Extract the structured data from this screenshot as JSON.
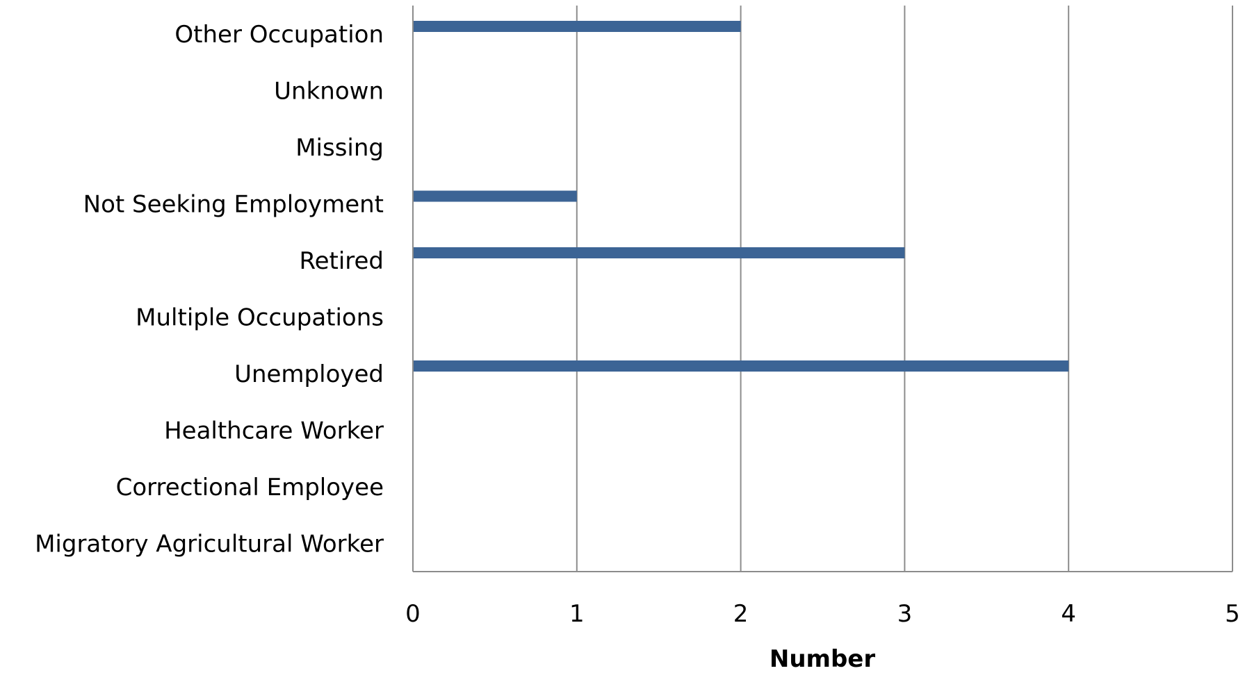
{
  "chart_data": {
    "type": "bar",
    "orientation": "horizontal",
    "categories": [
      "Other Occupation",
      "Unknown",
      "Missing",
      "Not Seeking Employment",
      "Retired",
      "Multiple Occupations",
      "Unemployed",
      "Healthcare Worker",
      "Correctional Employee",
      "Migratory Agricultural Worker"
    ],
    "values": [
      2,
      0,
      0,
      1,
      3,
      0,
      4,
      0,
      0,
      0
    ],
    "xlabel": "Number",
    "ylabel": "",
    "title": "",
    "xlim": [
      0,
      5
    ],
    "xticks": [
      "0",
      "1",
      "2",
      "3",
      "4",
      "5"
    ],
    "grid": "vertical",
    "legend": "none",
    "colors": {
      "bar": "#3c6495",
      "grid": "#8c8c8c",
      "text": "#000000"
    }
  }
}
